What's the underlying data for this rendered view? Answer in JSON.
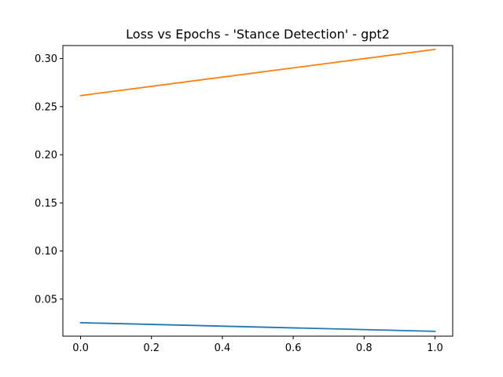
{
  "chart_data": {
    "type": "line",
    "title": "Loss vs Epochs - 'Stance Detection' - gpt2",
    "xlabel": "",
    "ylabel": "",
    "xlim": [
      -0.05,
      1.05
    ],
    "ylim": [
      0.0115,
      0.3135
    ],
    "grid": false,
    "x_ticks": [
      0.0,
      0.2,
      0.4,
      0.6,
      0.8,
      1.0
    ],
    "x_tick_labels": [
      "0.0",
      "0.2",
      "0.4",
      "0.6",
      "0.8",
      "1.0"
    ],
    "y_ticks": [
      0.05,
      0.1,
      0.15,
      0.2,
      0.25,
      0.3
    ],
    "y_tick_labels": [
      "0.05",
      "0.10",
      "0.15",
      "0.20",
      "0.25",
      "0.30"
    ],
    "series": [
      {
        "color": "#1f77b4",
        "x": [
          0.0,
          1.0
        ],
        "y": [
          0.0255,
          0.0165
        ]
      },
      {
        "color": "#ff7f0e",
        "x": [
          0.0,
          1.0
        ],
        "y": [
          0.2615,
          0.3095
        ]
      }
    ]
  }
}
